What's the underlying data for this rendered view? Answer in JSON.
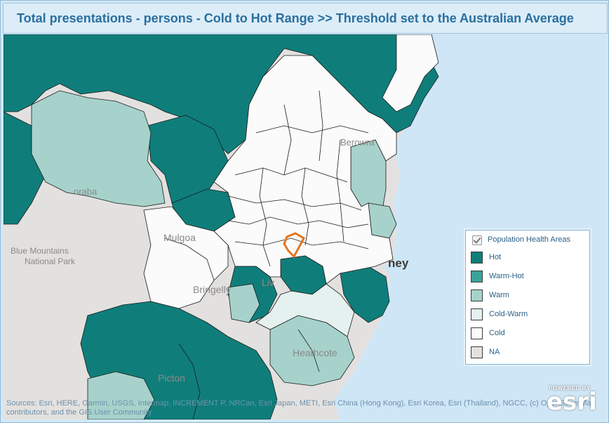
{
  "title": "Total presentations - persons - Cold to Hot Range >>  Threshold set to the Australian Average",
  "map_labels": {
    "berowra": "Berowra",
    "oraba": "oraba",
    "mulgoa": "Mulgoa",
    "blue_mountains": "Blue Mountains",
    "national_park": "National Park",
    "sydney": "ney",
    "bringelly": "Bringelly",
    "liverpool": "Liv",
    "heathcote": "Heathcote",
    "picton": "Picton"
  },
  "legend": {
    "checked": true,
    "title": "Population Health Areas",
    "items": [
      {
        "label": "Hot",
        "color": "#0f7e7a"
      },
      {
        "label": "Warm-Hot",
        "color": "#3aa39b"
      },
      {
        "label": "Warm",
        "color": "#a6d2cb"
      },
      {
        "label": "Cold-Warm",
        "color": "#e4f1ee"
      },
      {
        "label": "Cold",
        "color": "#fafbfa"
      },
      {
        "label": "NA",
        "color": "#e3e1df"
      }
    ]
  },
  "colors": {
    "hot": "#0f7e7a",
    "warm_hot": "#3aa39b",
    "warm": "#a6d2cb",
    "cold_warm": "#e4f1ee",
    "cold": "#fafbfa",
    "na": "#e3e1df",
    "water": "#cfe6f6",
    "selected_outline": "#e8741e"
  },
  "attribution": "Sources: Esri, HERE, Garmin, USGS, Intermap, INCREMENT P, NRCan, Esri Japan, METI, Esri China (Hong Kong), Esri Korea, Esri (Thailand), NGCC, (c) OpenStreetMap contributors, and the GIS User Community",
  "logo": {
    "powered_by": "POWERED BY",
    "brand": "esri"
  }
}
